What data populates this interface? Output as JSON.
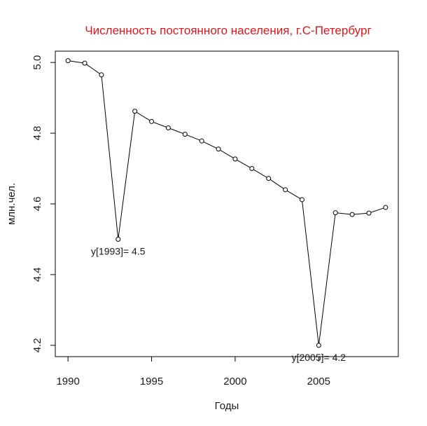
{
  "chart_data": {
    "type": "line",
    "title": "Численность постоянного населения, г.С-Петербург",
    "xlabel": "Годы",
    "ylabel": "млн.чел.",
    "x": [
      1990,
      1991,
      1992,
      1993,
      1994,
      1995,
      1996,
      1997,
      1998,
      1999,
      2000,
      2001,
      2002,
      2003,
      2004,
      2005,
      2006,
      2007,
      2008,
      2009
    ],
    "y": [
      5.005,
      4.998,
      4.965,
      4.5,
      4.862,
      4.833,
      4.815,
      4.797,
      4.778,
      4.755,
      4.727,
      4.7,
      4.672,
      4.64,
      4.612,
      4.2,
      4.575,
      4.57,
      4.574,
      4.59
    ],
    "xticks": [
      "1990",
      "1995",
      "2000",
      "2005"
    ],
    "yticks": [
      "4.2",
      "4.4",
      "4.6",
      "4.8",
      "5.0"
    ],
    "xlim": [
      1989.24,
      2009.76
    ],
    "ylim": [
      4.168,
      5.032
    ],
    "grid": false,
    "legend": "none",
    "annotations": [
      {
        "x": 1993,
        "y": 4.5,
        "text": "y[1993]= 4.5"
      },
      {
        "x": 2005,
        "y": 4.2,
        "text": "y[2005]= 4.2"
      }
    ],
    "colors": {
      "title": "#e8141b",
      "line": "#000000"
    }
  }
}
